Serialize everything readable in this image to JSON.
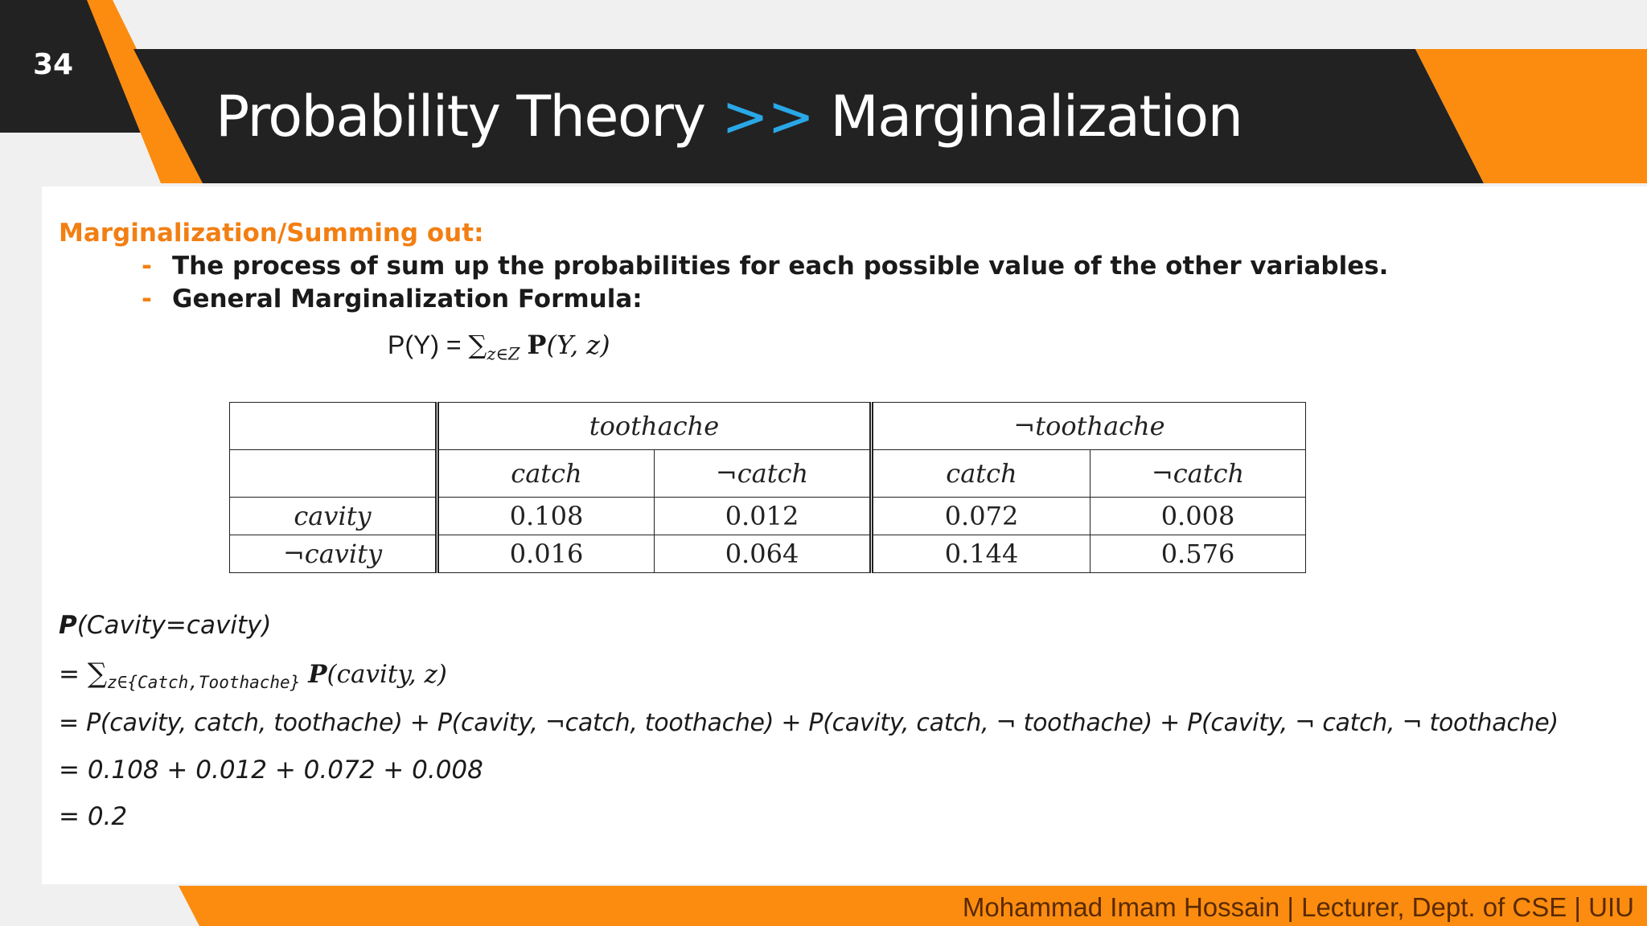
{
  "slide": {
    "number": "34"
  },
  "header": {
    "title_left": "Probability Theory",
    "title_separator": ">>",
    "title_right": "Marginalization"
  },
  "content": {
    "section_heading": "Marginalization/Summing out:",
    "bullet_marker": "-",
    "bullets": [
      "The process of sum up the probabilities for each possible value of the other variables.",
      "General Marginalization Formula:"
    ],
    "formula": {
      "lhs": "P(Y) =",
      "sum": "∑",
      "subscript": "z∈Z",
      "rhs_bold": "P",
      "rhs": "(Y, z)"
    },
    "table": {
      "group_headers": [
        "toothache",
        "¬toothache"
      ],
      "sub_headers": [
        "catch",
        "¬catch",
        "catch",
        "¬catch"
      ],
      "rows": [
        {
          "label": "cavity",
          "values": [
            "0.108",
            "0.012",
            "0.072",
            "0.008"
          ]
        },
        {
          "label": "¬cavity",
          "values": [
            "0.016",
            "0.064",
            "0.144",
            "0.576"
          ]
        }
      ]
    },
    "derivation": {
      "line0_bold": "P",
      "line0_rest": "(Cavity=cavity)",
      "line1_prefix": "=",
      "line1_sum": "∑",
      "line1_subscript": "z∈{Catch,Toothache}",
      "line1_bold": "P",
      "line1_rest": "(cavity, z)",
      "line2": "= P(cavity, catch, toothache) + P(cavity, ¬catch, toothache) + P(cavity, catch, ¬ toothache) + P(cavity, ¬ catch, ¬ toothache)",
      "line3": "= 0.108 + 0.012 + 0.072 + 0.008",
      "line4": "= 0.2"
    }
  },
  "footer": {
    "text": "Mohammad Imam Hossain | Lecturer, Dept. of CSE | UIU"
  },
  "colors": {
    "orange": "#fb8c10",
    "dark_band": "#222222",
    "accent_blue": "#2aa7e6",
    "heading_orange": "#f27f13",
    "background_gray": "#f0f0f0"
  }
}
